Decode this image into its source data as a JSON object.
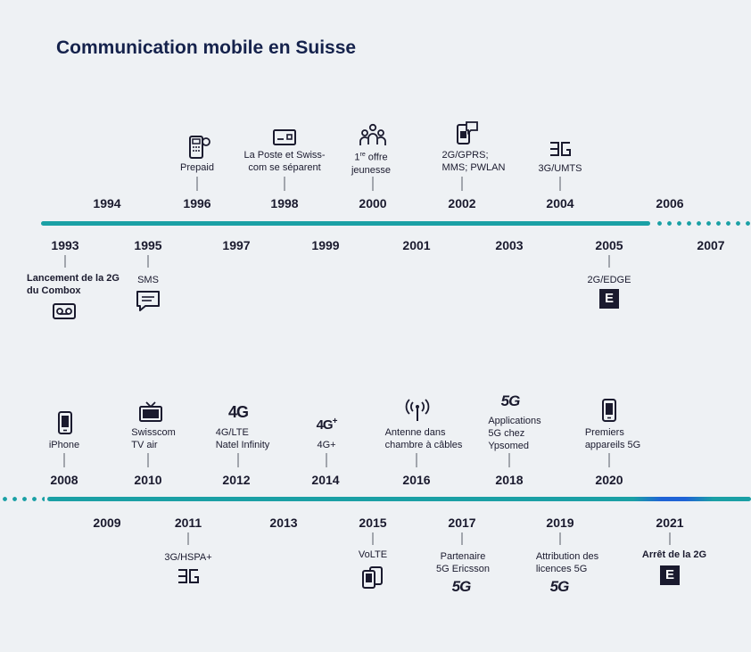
{
  "title": "Communication mobile en Suisse",
  "row1": {
    "top_years": [
      "1994",
      "1996",
      "1998",
      "2000",
      "2002",
      "2004",
      "2006"
    ],
    "bottom_years": [
      "1993",
      "1995",
      "1997",
      "1999",
      "2001",
      "2003",
      "2005",
      "2007"
    ],
    "events_above": [
      {
        "year": "1996",
        "label": "Prepaid",
        "icon": "prepaid-phone-icon"
      },
      {
        "year": "1998",
        "label": "La Poste et Swiss-\ncom se séparent",
        "icon": "id-card-icon"
      },
      {
        "year": "2000",
        "label_sup_num": "1",
        "label_sup": "re",
        "label_rest": " offre",
        "label_line2": "jeunesse",
        "icon": "people-group-icon"
      },
      {
        "year": "2002",
        "label": "2G/GPRS;\nMMS; PWLAN",
        "icon": "phone-message-icon"
      },
      {
        "year": "2004",
        "label": "3G/UMTS",
        "icon": "3g-icon"
      }
    ],
    "events_below": [
      {
        "year": "1993",
        "label": "Lancement de la 2G\ndu Combox",
        "icon": "voicemail-icon"
      },
      {
        "year": "1995",
        "label": "SMS",
        "icon": "sms-bubble-icon"
      },
      {
        "year": "2005",
        "label": "2G/EDGE",
        "icon": "edge-e-icon",
        "icon_text": "E"
      }
    ]
  },
  "row2": {
    "top_years": [
      "2008",
      "2010",
      "2012",
      "2014",
      "2016",
      "2018",
      "2020"
    ],
    "bottom_years": [
      "2009",
      "2011",
      "2013",
      "2015",
      "2017",
      "2019",
      "2021"
    ],
    "events_above": [
      {
        "year": "2008",
        "label": "iPhone",
        "icon": "smartphone-icon"
      },
      {
        "year": "2010",
        "label": "Swisscom\nTV air",
        "icon": "tv-icon"
      },
      {
        "year": "2012",
        "label": "4G/LTE\nNatel Infinity",
        "icon": "4g-icon",
        "icon_text": "4G"
      },
      {
        "year": "2014",
        "label": "4G+",
        "icon": "4g-plus-icon",
        "icon_text": "4G",
        "icon_sup": "+"
      },
      {
        "year": "2016",
        "label": "Antenne dans\nchambre à câbles",
        "icon": "antenna-icon"
      },
      {
        "year": "2018",
        "label": "Applications\n5G chez\nYpsomed",
        "icon": "5g-icon",
        "icon_text": "5G"
      },
      {
        "year": "2020",
        "label": "Premiers\nappareils 5G",
        "icon": "smartphone-5g-icon"
      }
    ],
    "events_below": [
      {
        "year": "2011",
        "label": "3G/HSPA+",
        "icon": "3g-hspa-icon"
      },
      {
        "year": "2015",
        "label": "VoLTE",
        "icon": "volte-phones-icon"
      },
      {
        "year": "2017",
        "label": "Partenaire\n5G Ericsson",
        "icon": "5g-ericsson-icon",
        "icon_text": "5G"
      },
      {
        "year": "2019",
        "label": "Attribution des\nlicences 5G",
        "icon": "5g-licence-icon",
        "icon_text": "5G"
      },
      {
        "year": "2021",
        "label": "Arrêt de la 2G",
        "icon": "2g-shutdown-e-icon",
        "icon_text": "E"
      }
    ]
  },
  "colors": {
    "timeline": "#1aa0a5",
    "highlight": "#1f63d6",
    "title": "#15224c",
    "background": "#eef1f4"
  }
}
